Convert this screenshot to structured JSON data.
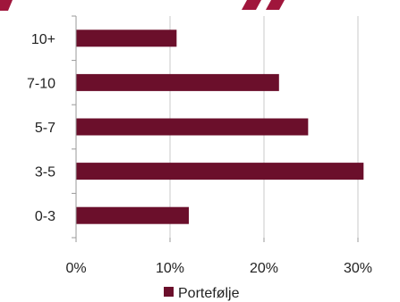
{
  "chart_data": {
    "type": "bar",
    "orientation": "horizontal",
    "title": "",
    "xlabel": "",
    "ylabel": "",
    "categories": [
      "10+",
      "7-10",
      "5-7",
      "3-5",
      "0-3"
    ],
    "series": [
      {
        "name": "Portefølje",
        "values": [
          10.7,
          21.6,
          24.7,
          30.6,
          12.0
        ]
      }
    ],
    "xlim": [
      0,
      30
    ],
    "x_ticks": [
      "0%",
      "10%",
      "20%",
      "30%"
    ],
    "grid": "vertical",
    "legend": "bottom",
    "colors": {
      "bar": "#6b0f2b",
      "grid": "#c8c8c8",
      "axis": "#9a9a9a",
      "title_fragment": "#a0163c"
    }
  }
}
